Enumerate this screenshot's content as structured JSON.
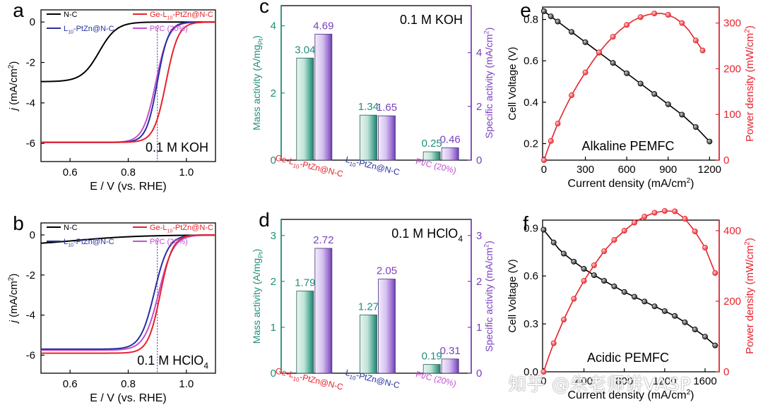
{
  "colors": {
    "nc": "#000000",
    "ge": "#e8222b",
    "l10": "#2730a0",
    "ptc": "#c14fd0",
    "teal": "#1f8f7a",
    "purple": "#7a3fc0",
    "bar_teal": "#3a9e86",
    "bar_purple": "#a070d6",
    "guide": "#6a3fb0",
    "axis": "#000000"
  },
  "chart_data": [
    {
      "id": "a",
      "type": "line",
      "panel_letter": "a",
      "annotation": "0.1 M KOH",
      "xlabel": "E / V (vs. RHE)",
      "ylabel": "j (mA/cm²)",
      "ylabel_parts": [
        "j",
        " (mA/cm",
        "2",
        ")"
      ],
      "xlim": [
        0.5,
        1.1
      ],
      "ylim": [
        -6.9,
        0.6
      ],
      "xticks": [
        0.6,
        0.8,
        1.0
      ],
      "xticklabels": [
        "0.6",
        "0.8",
        "1.0"
      ],
      "yticks": [
        0,
        -2,
        -4,
        -6
      ],
      "yticklabels": [
        "0",
        "-2",
        "-4",
        "-6"
      ],
      "guide_x": 0.9,
      "legend": [
        {
          "key": "nc",
          "label": "N-C"
        },
        {
          "key": "ge",
          "label_parts": [
            "Ge-L",
            "10",
            "-PtZn@N-C"
          ]
        },
        {
          "key": "l10",
          "label_parts": [
            "L",
            "10",
            "-PtZn@N-C"
          ]
        },
        {
          "key": "ptc",
          "label": "Pt/C (20%)"
        }
      ],
      "series": [
        {
          "key": "nc",
          "plateau": -2.95,
          "e_half": 0.7,
          "width": 0.03
        },
        {
          "key": "ptc",
          "plateau": -5.95,
          "e_half": 0.895,
          "width": 0.022
        },
        {
          "key": "l10",
          "plateau": -5.95,
          "e_half": 0.9,
          "width": 0.019
        },
        {
          "key": "ge",
          "plateau": -5.95,
          "e_half": 0.93,
          "width": 0.021
        }
      ]
    },
    {
      "id": "b",
      "type": "line",
      "panel_letter": "b",
      "annotation_parts": [
        "0.1 M HClO",
        "4"
      ],
      "xlabel": "E / V (vs. RHE)",
      "ylabel": "j (mA/cm²)",
      "ylabel_parts": [
        "j",
        " (mA/cm",
        "2",
        ")"
      ],
      "xlim": [
        0.5,
        1.1
      ],
      "ylim": [
        -6.9,
        0.6
      ],
      "xticks": [
        0.6,
        0.8,
        1.0
      ],
      "xticklabels": [
        "0.6",
        "0.8",
        "1.0"
      ],
      "yticks": [
        0,
        -2,
        -4,
        -6
      ],
      "yticklabels": [
        "0",
        "-2",
        "-4",
        "-6"
      ],
      "guide_x": 0.9,
      "legend": [
        {
          "key": "nc",
          "label": "N-C"
        },
        {
          "key": "ge",
          "label_parts": [
            "Ge-L",
            "10",
            "-PtZn@N-C"
          ]
        },
        {
          "key": "l10",
          "label_parts": [
            "L",
            "10",
            "-PtZn@N-C"
          ]
        },
        {
          "key": "ptc",
          "label": "Pt/C (20%)"
        }
      ],
      "series": [
        {
          "key": "nc",
          "plateau": -0.55,
          "e_half": 0.62,
          "width": 0.11
        },
        {
          "key": "ptc",
          "plateau": -5.75,
          "e_half": 0.905,
          "width": 0.025
        },
        {
          "key": "l10",
          "plateau": -5.7,
          "e_half": 0.89,
          "width": 0.024
        },
        {
          "key": "ge",
          "plateau": -5.9,
          "e_half": 0.91,
          "width": 0.021
        }
      ]
    },
    {
      "id": "c",
      "type": "bar",
      "panel_letter": "c",
      "annotation": "0.1 M KOH",
      "ylabel_left_parts": [
        "Mass activity (A/mg",
        "Pt",
        ")"
      ],
      "ylabel_right_parts": [
        "Specific activity (mA/cm",
        "2",
        ")"
      ],
      "ylim_left": [
        0,
        4.6
      ],
      "ylim_right": [
        0,
        5.75
      ],
      "yticks_left": [
        0,
        2,
        4
      ],
      "yticks_right": [
        0,
        2,
        4
      ],
      "yticklabels_left": [
        "0",
        "2",
        "4"
      ],
      "yticklabels_right": [
        "0",
        "2",
        "4"
      ],
      "categories_parts": [
        [
          "Ge-L",
          "10",
          "-PtZn@N-C"
        ],
        [
          "L",
          "10",
          "-PtZn@N-C"
        ],
        [
          "Pt/C (20%)"
        ]
      ],
      "category_keys": [
        "ge",
        "l10",
        "ptc"
      ],
      "series": [
        {
          "name": "Mass activity",
          "axis": "left",
          "values": [
            3.04,
            1.34,
            0.25
          ],
          "labels": [
            "3.04",
            "1.34",
            "0.25"
          ]
        },
        {
          "name": "Specific activity",
          "axis": "right",
          "values": [
            4.69,
            1.65,
            0.46
          ],
          "labels": [
            "4.69",
            "1.65",
            "0.46"
          ]
        }
      ]
    },
    {
      "id": "d",
      "type": "bar",
      "panel_letter": "d",
      "annotation_parts": [
        "0.1 M HClO",
        "4"
      ],
      "ylabel_left_parts": [
        "Mass activity (A/mg",
        "Pt",
        ")"
      ],
      "ylabel_right_parts": [
        "Specific activity (mA/cm",
        "2",
        ")"
      ],
      "ylim_left": [
        0,
        3.35
      ],
      "ylim_right": [
        0,
        3.35
      ],
      "yticks_left": [
        0,
        1,
        2,
        3
      ],
      "yticks_right": [
        0,
        1,
        2,
        3
      ],
      "yticklabels_left": [
        "0",
        "1",
        "2",
        "3"
      ],
      "yticklabels_right": [
        "0",
        "1",
        "2",
        "3"
      ],
      "categories_parts": [
        [
          "Ge-L",
          "10",
          "-PtZn@N-C"
        ],
        [
          "L",
          "10",
          "-PtZn@N-C"
        ],
        [
          "Pt/C (20%)"
        ]
      ],
      "category_keys": [
        "ge",
        "l10",
        "ptc"
      ],
      "series": [
        {
          "name": "Mass activity",
          "axis": "left",
          "values": [
            1.79,
            1.27,
            0.19
          ],
          "labels": [
            "1.79",
            "1.27",
            "0.19"
          ]
        },
        {
          "name": "Specific activity",
          "axis": "right",
          "values": [
            2.72,
            2.05,
            0.31
          ],
          "labels": [
            "2.72",
            "2.05",
            "0.31"
          ]
        }
      ]
    },
    {
      "id": "e",
      "type": "line",
      "panel_letter": "e",
      "annotation": "Alkaline PEMFC",
      "xlabel_parts": [
        "Current density (mA/cm",
        "2",
        ")"
      ],
      "ylabel_left": "Cell Voltage (V)",
      "ylabel_right_parts": [
        "Power density (mW/cm",
        "2",
        ")"
      ],
      "xlim": [
        -10,
        1270
      ],
      "ylim_left": [
        0.12,
        0.86
      ],
      "ylim_right": [
        0,
        335
      ],
      "xticks": [
        0,
        300,
        600,
        900,
        1200
      ],
      "xticklabels": [
        "0",
        "300",
        "600",
        "900",
        "1200"
      ],
      "yticks_left": [
        0.2,
        0.4,
        0.6,
        0.8
      ],
      "yticklabels_left": [
        "0.2",
        "0.4",
        "0.6",
        "0.8"
      ],
      "yticks_right": [
        0,
        100,
        200,
        300
      ],
      "yticklabels_right": [
        "0",
        "100",
        "200",
        "300"
      ],
      "voltage_curve": {
        "x": [
          0,
          50,
          100,
          150,
          200,
          250,
          300,
          350,
          400,
          450,
          500,
          550,
          600,
          650,
          700,
          750,
          800,
          850,
          900,
          950,
          1000,
          1050,
          1100,
          1150,
          1200
        ],
        "y": [
          0.84,
          0.815,
          0.79,
          0.765,
          0.74,
          0.715,
          0.69,
          0.665,
          0.64,
          0.615,
          0.59,
          0.565,
          0.54,
          0.515,
          0.49,
          0.465,
          0.44,
          0.415,
          0.39,
          0.365,
          0.34,
          0.31,
          0.28,
          0.245,
          0.21
        ]
      },
      "voltage_points": {
        "x": [
          0,
          50,
          100,
          200,
          300,
          400,
          500,
          600,
          700,
          800,
          900,
          1000,
          1100,
          1200
        ],
        "y": [
          0.84,
          0.815,
          0.79,
          0.74,
          0.69,
          0.64,
          0.59,
          0.54,
          0.49,
          0.44,
          0.39,
          0.34,
          0.28,
          0.21
        ]
      },
      "power_curve": {
        "x": [
          0,
          50,
          100,
          150,
          200,
          250,
          300,
          350,
          400,
          450,
          500,
          550,
          600,
          650,
          700,
          750,
          800,
          850,
          900,
          950,
          1000,
          1050,
          1100,
          1150
        ],
        "y": [
          0,
          42,
          80,
          112,
          142,
          168,
          192,
          215,
          236,
          254,
          270,
          284,
          296,
          306,
          313,
          318,
          321,
          321,
          318,
          311,
          300,
          284,
          262,
          240
        ]
      },
      "power_points": {
        "x": [
          0,
          50,
          100,
          200,
          300,
          400,
          500,
          600,
          700,
          800,
          900,
          1000,
          1100,
          1150
        ],
        "y": [
          0,
          42,
          80,
          142,
          192,
          236,
          270,
          296,
          313,
          321,
          318,
          300,
          262,
          240
        ]
      }
    },
    {
      "id": "f",
      "type": "line",
      "panel_letter": "f",
      "annotation": "Acidic PEMFC",
      "xlabel_parts": [
        "Current density (mA/cm",
        "2",
        ")"
      ],
      "ylabel_left": "Cell Voltage (V)",
      "ylabel_right_parts": [
        "Power density (mW/cm",
        "2",
        ")"
      ],
      "xlim": [
        -10,
        1740
      ],
      "ylim_left": [
        0.0,
        0.95
      ],
      "ylim_right": [
        0,
        430
      ],
      "xticks": [
        0,
        400,
        800,
        1200,
        1600
      ],
      "xticklabels": [
        "0",
        "400",
        "800",
        "1200",
        "1600"
      ],
      "yticks_left": [
        0.0,
        0.3,
        0.6,
        0.9
      ],
      "yticklabels_left": [
        "0.0",
        "0.3",
        "0.6",
        "0.9"
      ],
      "yticks_right": [
        0,
        200,
        400
      ],
      "yticklabels_right": [
        "0",
        "200",
        "400"
      ],
      "voltage_curve": {
        "x": [
          0,
          50,
          100,
          150,
          200,
          250,
          300,
          400,
          500,
          600,
          700,
          800,
          900,
          1000,
          1100,
          1200,
          1300,
          1400,
          1500,
          1600,
          1700
        ],
        "y": [
          0.89,
          0.85,
          0.81,
          0.77,
          0.74,
          0.715,
          0.69,
          0.645,
          0.605,
          0.57,
          0.535,
          0.5,
          0.47,
          0.44,
          0.41,
          0.38,
          0.35,
          0.31,
          0.265,
          0.22,
          0.165
        ]
      },
      "voltage_points": {
        "x": [
          0,
          100,
          200,
          300,
          400,
          500,
          600,
          700,
          800,
          900,
          1000,
          1100,
          1200,
          1300,
          1400,
          1500,
          1600,
          1700
        ],
        "y": [
          0.89,
          0.81,
          0.74,
          0.69,
          0.645,
          0.605,
          0.57,
          0.535,
          0.5,
          0.47,
          0.44,
          0.41,
          0.38,
          0.35,
          0.31,
          0.265,
          0.22,
          0.165
        ]
      },
      "power_curve": {
        "x": [
          0,
          50,
          100,
          200,
          300,
          400,
          500,
          600,
          700,
          800,
          900,
          1000,
          1100,
          1200,
          1300,
          1400,
          1500,
          1600,
          1700
        ],
        "y": [
          0,
          42,
          81,
          148,
          207,
          258,
          302,
          342,
          374,
          400,
          423,
          440,
          451,
          456,
          455,
          434,
          398,
          352,
          280
        ]
      },
      "power_points": {
        "x": [
          0,
          100,
          200,
          300,
          400,
          500,
          600,
          700,
          800,
          900,
          1000,
          1100,
          1200,
          1300,
          1400,
          1500,
          1600,
          1700
        ],
        "y": [
          0,
          81,
          148,
          207,
          258,
          302,
          342,
          374,
          400,
          423,
          440,
          451,
          456,
          455,
          434,
          398,
          352,
          280
        ]
      }
    }
  ],
  "watermark": "知乎 @朱老师讲VASP"
}
